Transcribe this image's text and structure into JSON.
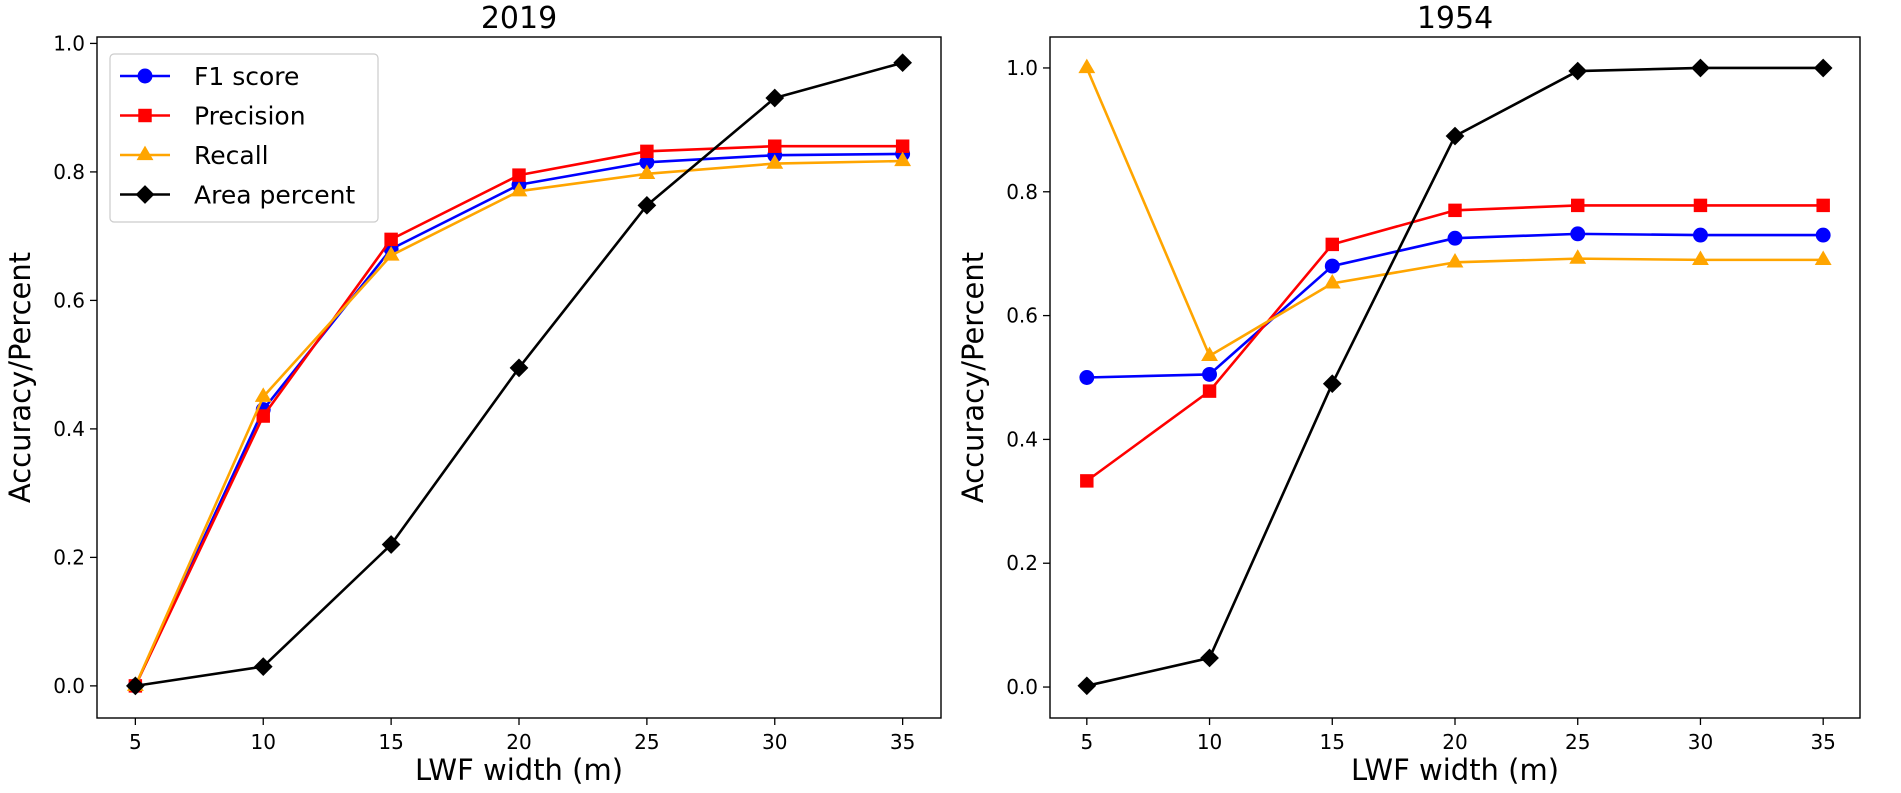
{
  "chart_data": [
    {
      "type": "line",
      "title": "2019",
      "xlabel": "LWF width (m)",
      "ylabel": "Accuracy/Percent",
      "x": [
        5,
        10,
        15,
        20,
        25,
        30,
        35
      ],
      "xticks": [
        "5",
        "10",
        "15",
        "20",
        "25",
        "30",
        "35"
      ],
      "xlim": [
        3.5,
        36.5
      ],
      "ylim": [
        -0.05,
        1.01
      ],
      "yticks": [
        "0.0",
        "0.2",
        "0.4",
        "0.6",
        "0.8",
        "1.0"
      ],
      "legend": "top-left",
      "series": [
        {
          "name": "F1 score",
          "color": "#0000ff",
          "marker": "circle",
          "values": [
            0.0,
            0.43,
            0.68,
            0.78,
            0.815,
            0.826,
            0.828
          ]
        },
        {
          "name": "Precision",
          "color": "#ff0000",
          "marker": "square",
          "values": [
            0.0,
            0.42,
            0.695,
            0.795,
            0.832,
            0.84,
            0.84
          ]
        },
        {
          "name": "Recall",
          "color": "#ffa500",
          "marker": "triangle",
          "values": [
            0.0,
            0.45,
            0.67,
            0.77,
            0.797,
            0.813,
            0.817
          ]
        },
        {
          "name": "Area percent",
          "color": "#000000",
          "marker": "diamond",
          "values": [
            0.0,
            0.03,
            0.22,
            0.495,
            0.748,
            0.915,
            0.97
          ]
        }
      ]
    },
    {
      "type": "line",
      "title": "1954",
      "xlabel": "LWF width (m)",
      "ylabel": "Accuracy/Percent",
      "x": [
        5,
        10,
        15,
        20,
        25,
        30,
        35
      ],
      "xticks": [
        "5",
        "10",
        "15",
        "20",
        "25",
        "30",
        "35"
      ],
      "xlim": [
        3.5,
        36.5
      ],
      "ylim": [
        -0.05,
        1.05
      ],
      "yticks": [
        "0.0",
        "0.2",
        "0.4",
        "0.6",
        "0.8",
        "1.0"
      ],
      "series": [
        {
          "name": "F1 score",
          "color": "#0000ff",
          "marker": "circle",
          "values": [
            0.5,
            0.505,
            0.68,
            0.725,
            0.732,
            0.73,
            0.73
          ]
        },
        {
          "name": "Precision",
          "color": "#ff0000",
          "marker": "square",
          "values": [
            0.333,
            0.478,
            0.715,
            0.77,
            0.778,
            0.778,
            0.778
          ]
        },
        {
          "name": "Recall",
          "color": "#ffa500",
          "marker": "triangle",
          "values": [
            1.0,
            0.535,
            0.652,
            0.686,
            0.692,
            0.69,
            0.69
          ]
        },
        {
          "name": "Area percent",
          "color": "#000000",
          "marker": "diamond",
          "values": [
            0.002,
            0.047,
            0.49,
            0.89,
            0.995,
            1.0,
            1.0
          ]
        }
      ]
    }
  ]
}
